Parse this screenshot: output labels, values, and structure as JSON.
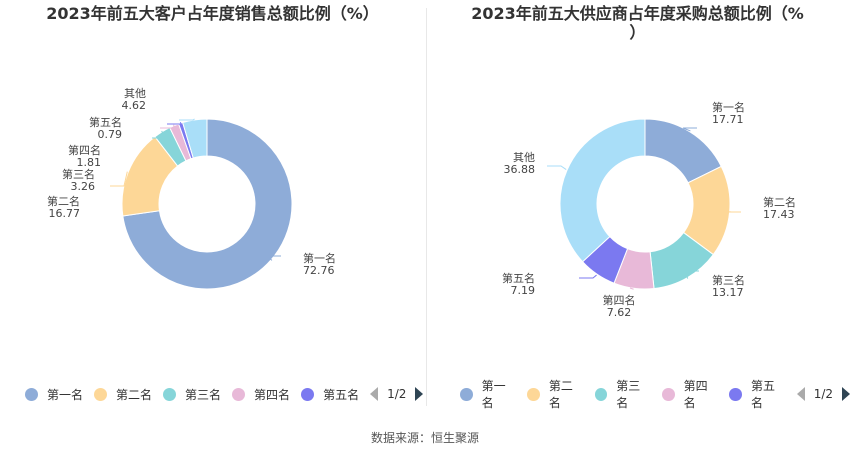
{
  "source_text": "数据来源：恒生聚源",
  "chart_data": [
    {
      "type": "pie",
      "title": "2023年前五大客户占年度销售总额比例（%）",
      "title_lines": [
        "2023年前五大客户占年度销售总额比例（%）"
      ],
      "categories": [
        "第一名",
        "第二名",
        "第三名",
        "第四名",
        "第五名",
        "其他"
      ],
      "values": [
        72.76,
        16.77,
        3.26,
        1.81,
        0.79,
        4.62
      ],
      "value_labels": [
        "72.76",
        "16.77",
        "3.26",
        "1.81",
        "0.79",
        "4.62"
      ],
      "colors": [
        "#8eacd8",
        "#fdd797",
        "#86d5d9",
        "#e8b9d8",
        "#7b79f0",
        "#a9def8"
      ],
      "legend": {
        "position": "bottom",
        "visible_items": [
          "第一名",
          "第二名",
          "第三名",
          "第四名",
          "第五名"
        ],
        "page": "1/2"
      }
    },
    {
      "type": "pie",
      "title": "2023年前五大供应商占年度采购总额比例（%）",
      "title_lines": [
        "2023年前五大供应商占年度采购总额比例（%",
        "）"
      ],
      "categories": [
        "第一名",
        "第二名",
        "第三名",
        "第四名",
        "第五名",
        "其他"
      ],
      "values": [
        17.71,
        17.43,
        13.17,
        7.62,
        7.19,
        36.88
      ],
      "value_labels": [
        "17.71",
        "17.43",
        "13.17",
        "7.62",
        "7.19",
        "36.88"
      ],
      "colors": [
        "#8eacd8",
        "#fdd797",
        "#86d5d9",
        "#e8b9d8",
        "#7b79f0",
        "#a9def8"
      ],
      "legend": {
        "position": "bottom",
        "visible_items": [
          "第一名",
          "第二名",
          "第三名",
          "第四名",
          "第五名"
        ],
        "page": "1/2"
      }
    }
  ]
}
